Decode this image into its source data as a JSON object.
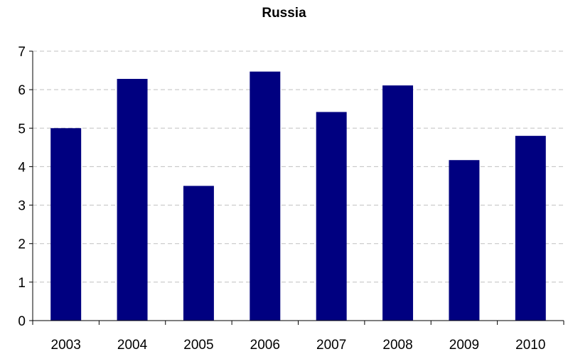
{
  "chart_data": {
    "type": "bar",
    "title": "Russia",
    "xlabel": "",
    "ylabel": "",
    "categories": [
      "2003",
      "2004",
      "2005",
      "2006",
      "2007",
      "2008",
      "2009",
      "2010"
    ],
    "values": [
      5.0,
      6.28,
      3.5,
      6.47,
      5.42,
      6.11,
      4.17,
      4.8
    ],
    "ylim": [
      0,
      7
    ],
    "yticks": [
      0,
      1,
      2,
      3,
      4,
      5,
      6,
      7
    ],
    "grid": "horizontal dashed",
    "legend": "none",
    "colors": {
      "bar": "#000080",
      "grid": "#c0c0c0",
      "axis": "#000000"
    }
  }
}
